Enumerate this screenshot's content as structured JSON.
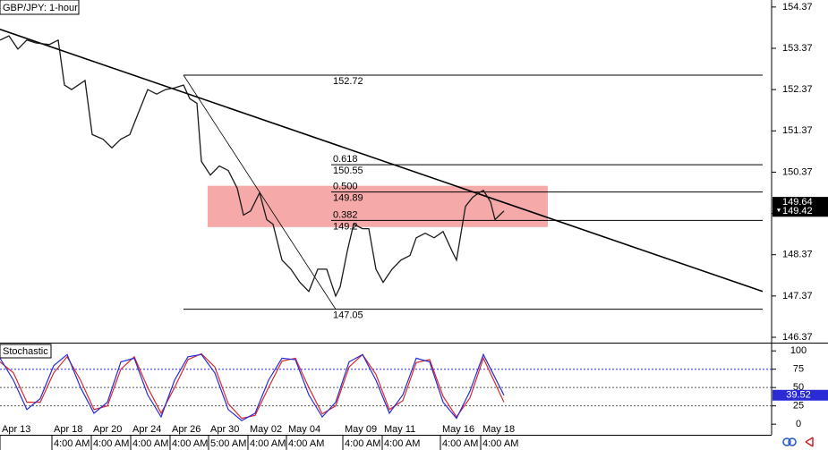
{
  "chart_data": [
    {
      "type": "line",
      "title": "GBP/JPY: 1-hour",
      "color": "#1a1a1a",
      "x": [
        0,
        2,
        4,
        6,
        8,
        11,
        13,
        14.4,
        16,
        19,
        20.6,
        23,
        25,
        27,
        29,
        31,
        33,
        35,
        37,
        39,
        41,
        42.4,
        44,
        45,
        47,
        49,
        51,
        53,
        54.4,
        56,
        58,
        59.6,
        61,
        63,
        65,
        67,
        69,
        71,
        73,
        75,
        76,
        77.6,
        79,
        81,
        82.4,
        84,
        85.6,
        87.6,
        89.6,
        91.6,
        93,
        95,
        97,
        99,
        101,
        102,
        103,
        104,
        105.6,
        107,
        108,
        109.6,
        110.6,
        112,
        112.6
      ],
      "values": [
        153.57,
        153.67,
        153.35,
        153.57,
        153.5,
        153.46,
        153.57,
        152.48,
        152.37,
        152.59,
        151.28,
        151.17,
        150.96,
        151.17,
        151.28,
        151.83,
        152.37,
        152.26,
        152.37,
        152.41,
        152.48,
        152.15,
        152.04,
        150.63,
        150.3,
        150.52,
        150.41,
        149.98,
        149.33,
        149.43,
        149.87,
        149.22,
        149.11,
        148.24,
        148.02,
        147.7,
        147.48,
        148.02,
        148.02,
        147.37,
        147.59,
        148.46,
        149.11,
        149.0,
        149.0,
        148.02,
        147.7,
        148.02,
        148.24,
        148.35,
        148.78,
        148.89,
        148.78,
        148.93,
        148.46,
        148.24,
        148.89,
        149.54,
        149.76,
        149.87,
        149.93,
        149.65,
        149.22,
        149.37,
        149.43
      ],
      "xlim": [
        0,
        172.4
      ],
      "ylim": [
        146.24,
        154.54
      ],
      "yticks": [
        154.37,
        153.37,
        152.37,
        151.37,
        150.37,
        149.37,
        148.37,
        147.37,
        146.37
      ],
      "xticks": [
        {
          "value": 0,
          "label": "Apr 13"
        },
        {
          "value": 11.6,
          "label": "Apr 18"
        },
        {
          "value": 20.4,
          "label": "Apr 20"
        },
        {
          "value": 29.2,
          "label": "Apr 24"
        },
        {
          "value": 38,
          "label": "Apr 26"
        },
        {
          "value": 46.6,
          "label": "Apr 30"
        },
        {
          "value": 55.4,
          "label": "May 02"
        },
        {
          "value": 64,
          "label": "May 04"
        },
        {
          "value": 76.6,
          "label": "May 09"
        },
        {
          "value": 85.4,
          "label": "May 11"
        },
        {
          "value": 98.4,
          "label": "May 16"
        },
        {
          "value": 107.4,
          "label": "May 18"
        }
      ],
      "xticks2": [
        {
          "value": 11.6,
          "label": "4:00 AM"
        },
        {
          "value": 20.4,
          "label": "4:00 AM"
        },
        {
          "value": 29.2,
          "label": "4:00 AM"
        },
        {
          "value": 38,
          "label": "4:00 AM"
        },
        {
          "value": 46.6,
          "label": "5:00 AM"
        },
        {
          "value": 55.4,
          "label": "4:00 AM"
        },
        {
          "value": 64,
          "label": "4:00 AM"
        },
        {
          "value": 76.6,
          "label": "4:00 AM"
        },
        {
          "value": 85.4,
          "label": "4:00 AM"
        },
        {
          "value": 98.4,
          "label": "4:00 AM"
        },
        {
          "value": 107.4,
          "label": "4:00 AM"
        }
      ],
      "trendline": {
        "x": [
          0,
          170.4
        ],
        "values": [
          153.83,
          147.48
        ]
      },
      "swing": {
        "x": [
          41,
          75
        ],
        "values": [
          152.72,
          147.05
        ]
      },
      "zone": {
        "x": [
          46.4,
          122.4
        ],
        "values": [
          150.04,
          149.04
        ]
      },
      "levels": [
        {
          "value": 152.72,
          "x": 41
        },
        {
          "value": 147.05,
          "x": 41
        }
      ],
      "fib_levels": [
        {
          "price": 150.55,
          "ratio": "0.618"
        },
        {
          "price": 149.89,
          "ratio": "0.500"
        },
        {
          "price": 149.2,
          "ratio": "0.382"
        }
      ],
      "price_labels": [
        149.64,
        149.42
      ]
    },
    {
      "type": "stochastic",
      "title": "Stochastic",
      "x": [
        0,
        3,
        6,
        9,
        12,
        15,
        18,
        21,
        24,
        27,
        30,
        33,
        36,
        39,
        42,
        45,
        48,
        51,
        54,
        57,
        60,
        63,
        66,
        69,
        72,
        75,
        78,
        81,
        84,
        87,
        90,
        93,
        96,
        99,
        102,
        105,
        108,
        112.6
      ],
      "series": [
        {
          "color": "#2b2bd6",
          "values": [
            90,
            60,
            20,
            35,
            80,
            95,
            50,
            15,
            30,
            85,
            90,
            40,
            10,
            60,
            92,
            95,
            70,
            20,
            5,
            15,
            60,
            90,
            88,
            40,
            10,
            30,
            85,
            95,
            60,
            15,
            40,
            90,
            85,
            30,
            8,
            45,
            95,
            39.52
          ]
        },
        {
          "color": "#d62b2b",
          "values": [
            85,
            70,
            30,
            30,
            70,
            92,
            60,
            20,
            25,
            75,
            92,
            50,
            15,
            50,
            88,
            96,
            78,
            28,
            8,
            12,
            50,
            86,
            90,
            50,
            14,
            25,
            78,
            95,
            68,
            20,
            32,
            84,
            88,
            38,
            10,
            36,
            90,
            30
          ]
        }
      ],
      "xlim": [
        0,
        172.4
      ],
      "ylim": [
        -12,
        110
      ],
      "yticks": [
        100,
        75,
        50,
        25,
        0
      ],
      "guides": [
        75,
        50,
        25
      ],
      "value_label": 39.52
    }
  ]
}
